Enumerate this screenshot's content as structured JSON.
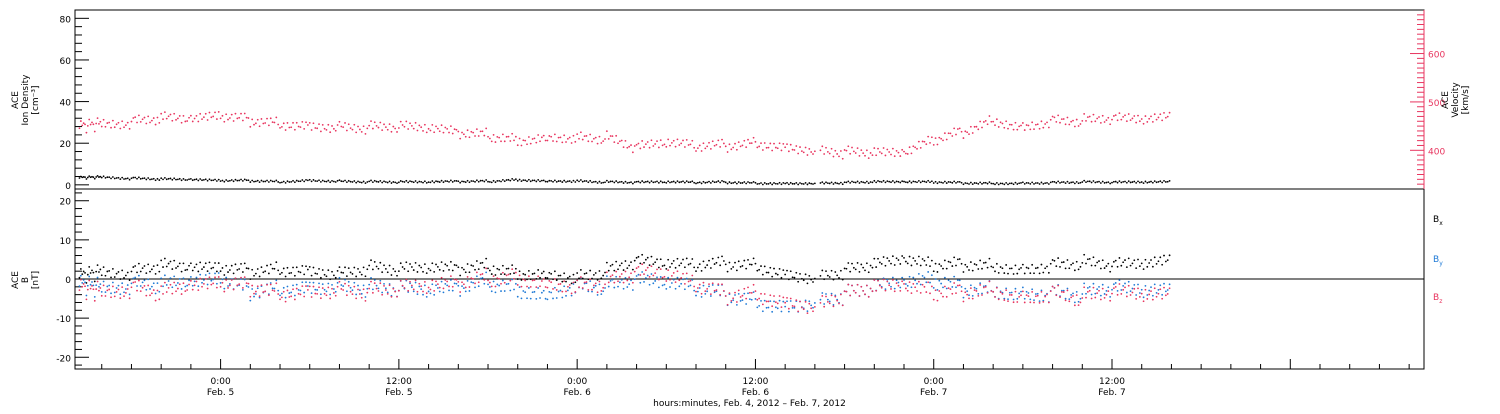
{
  "colors": {
    "black": "#000000",
    "pink": "#e8355f",
    "blue": "#1f7ad6",
    "axis": "#000000"
  },
  "xaxis": {
    "title": "hours:minutes, Feb.  4, 2012 – Feb.  7, 2012",
    "range_hours": [
      -9.8,
      81
    ],
    "major_ticks": [
      {
        "hour": 0,
        "time": "0:00",
        "date": "Feb. 5"
      },
      {
        "hour": 12,
        "time": "12:00",
        "date": "Feb. 5"
      },
      {
        "hour": 24,
        "time": "0:00",
        "date": "Feb. 6"
      },
      {
        "hour": 36,
        "time": "12:00",
        "date": "Feb. 6"
      },
      {
        "hour": 48,
        "time": "0:00",
        "date": "Feb. 7"
      },
      {
        "hour": 60,
        "time": "12:00",
        "date": "Feb. 7"
      }
    ]
  },
  "chart_data": [
    {
      "type": "scatter",
      "panel": "top",
      "ylabel_left": [
        "ACE",
        "Ion Density",
        "[cm⁻³]"
      ],
      "ylabel_right": [
        "ACE",
        "Velocity",
        "[km/s]"
      ],
      "ylim_left": [
        -2,
        84
      ],
      "ylim_right": [
        320,
        690
      ],
      "yticks_left": [
        "0",
        "20",
        "40",
        "60",
        "80"
      ],
      "yticks_right": [
        "400",
        "500",
        "600"
      ],
      "series": [
        {
          "name": "Ion Density",
          "axis": "left",
          "color": "black",
          "points": [
            [
              -9.5,
              3.5
            ],
            [
              -8,
              3.8
            ],
            [
              -6,
              3.2
            ],
            [
              -4,
              2.6
            ],
            [
              -2,
              2.2
            ],
            [
              0,
              1.8
            ],
            [
              2,
              2.0
            ],
            [
              4,
              1.6
            ],
            [
              6,
              2.4
            ],
            [
              8,
              1.9
            ],
            [
              10,
              1.5
            ],
            [
              12,
              1.2
            ],
            [
              14,
              1.1
            ],
            [
              16,
              1.4
            ],
            [
              18,
              1.6
            ],
            [
              20,
              2.6
            ],
            [
              22,
              2.1
            ],
            [
              24,
              2.0
            ],
            [
              26,
              1.3
            ],
            [
              28,
              1.0
            ],
            [
              30,
              1.1
            ],
            [
              32,
              1.0
            ],
            [
              34,
              1.3
            ],
            [
              36,
              1.0
            ],
            [
              38,
              0.9
            ],
            [
              40,
              1.0
            ],
            [
              42,
              1.0
            ],
            [
              44,
              1.2
            ],
            [
              46,
              1.1
            ],
            [
              48,
              1.2
            ],
            [
              50,
              1.0
            ],
            [
              52,
              0.9
            ],
            [
              54,
              1.0
            ],
            [
              56,
              1.2
            ],
            [
              58,
              1.3
            ],
            [
              60,
              1.0
            ],
            [
              62,
              1.0
            ],
            [
              64,
              1.2
            ]
          ]
        },
        {
          "name": "Velocity",
          "axis": "right",
          "color": "pink",
          "points": [
            [
              -9.5,
              450
            ],
            [
              -8,
              456
            ],
            [
              -6,
              460
            ],
            [
              -4,
              464
            ],
            [
              -2,
              458
            ],
            [
              0,
              466
            ],
            [
              2,
              462
            ],
            [
              4,
              458
            ],
            [
              6,
              456
            ],
            [
              8,
              452
            ],
            [
              10,
              448
            ],
            [
              12,
              446
            ],
            [
              14,
              440
            ],
            [
              16,
              432
            ],
            [
              18,
              430
            ],
            [
              20,
              424
            ],
            [
              22,
              432
            ],
            [
              24,
              430
            ],
            [
              26,
              425
            ],
            [
              28,
              402
            ],
            [
              30,
              410
            ],
            [
              32,
              405
            ],
            [
              34,
              410
            ],
            [
              36,
              418
            ],
            [
              38,
              412
            ],
            [
              40,
              404
            ],
            [
              42,
              396
            ],
            [
              44,
              390
            ],
            [
              46,
              388
            ],
            [
              48,
              418
            ],
            [
              50,
              440
            ],
            [
              52,
              466
            ],
            [
              54,
              452
            ],
            [
              56,
              464
            ],
            [
              58,
              460
            ],
            [
              60,
              462
            ],
            [
              62,
              458
            ],
            [
              64,
              464
            ]
          ]
        }
      ]
    },
    {
      "type": "scatter",
      "panel": "bottom",
      "ylabel_left": [
        "ACE",
        "B",
        "[nT]"
      ],
      "ylim": [
        -23,
        23
      ],
      "yticks": [
        "-20",
        "-10",
        "0",
        "10",
        "20"
      ],
      "legend": [
        "Bx",
        "By",
        "Bz"
      ],
      "series": [
        {
          "name": "Bx",
          "color": "black",
          "points": [
            [
              -9.5,
              1
            ],
            [
              -8,
              2
            ],
            [
              -6,
              2
            ],
            [
              -4,
              3
            ],
            [
              -2,
              2
            ],
            [
              0,
              2
            ],
            [
              2,
              2
            ],
            [
              4,
              3
            ],
            [
              6,
              3
            ],
            [
              8,
              2
            ],
            [
              10,
              3
            ],
            [
              12,
              2
            ],
            [
              14,
              2
            ],
            [
              16,
              2
            ],
            [
              18,
              3
            ],
            [
              20,
              2
            ],
            [
              22,
              2
            ],
            [
              24,
              1
            ],
            [
              26,
              2
            ],
            [
              28,
              4
            ],
            [
              30,
              3
            ],
            [
              32,
              3
            ],
            [
              34,
              4
            ],
            [
              36,
              4
            ],
            [
              38,
              2
            ],
            [
              40,
              1
            ],
            [
              42,
              2
            ],
            [
              44,
              3
            ],
            [
              46,
              4
            ],
            [
              48,
              3
            ],
            [
              50,
              4
            ],
            [
              52,
              4
            ],
            [
              54,
              3
            ],
            [
              56,
              4
            ],
            [
              58,
              4
            ],
            [
              60,
              3
            ],
            [
              62,
              3
            ],
            [
              64,
              4
            ]
          ]
        },
        {
          "name": "By",
          "color": "blue",
          "points": [
            [
              -9.5,
              -1
            ],
            [
              -8,
              -2
            ],
            [
              -6,
              -1
            ],
            [
              -4,
              -2
            ],
            [
              -2,
              -2
            ],
            [
              0,
              -1
            ],
            [
              2,
              -3
            ],
            [
              4,
              -2
            ],
            [
              6,
              -1
            ],
            [
              8,
              -1
            ],
            [
              10,
              -2
            ],
            [
              12,
              -3
            ],
            [
              14,
              -4
            ],
            [
              16,
              -3
            ],
            [
              18,
              -1
            ],
            [
              20,
              -2
            ],
            [
              22,
              -3
            ],
            [
              24,
              -1
            ],
            [
              26,
              -2
            ],
            [
              28,
              -1
            ],
            [
              30,
              -2
            ],
            [
              32,
              -3
            ],
            [
              34,
              -4
            ],
            [
              36,
              -5
            ],
            [
              38,
              -6
            ],
            [
              40,
              -5
            ],
            [
              42,
              -4
            ],
            [
              44,
              -3
            ],
            [
              46,
              -2
            ],
            [
              48,
              -1
            ],
            [
              50,
              -2
            ],
            [
              52,
              -2
            ],
            [
              54,
              -3
            ],
            [
              56,
              -3
            ],
            [
              58,
              -4
            ],
            [
              60,
              -3
            ],
            [
              62,
              -4
            ],
            [
              64,
              -4
            ]
          ]
        },
        {
          "name": "Bz",
          "color": "pink",
          "points": [
            [
              -9.5,
              -2
            ],
            [
              -8,
              -3
            ],
            [
              -6,
              -2
            ],
            [
              -4,
              -4
            ],
            [
              -2,
              -3
            ],
            [
              0,
              -2
            ],
            [
              2,
              -2
            ],
            [
              4,
              -3
            ],
            [
              6,
              -2
            ],
            [
              8,
              -2
            ],
            [
              10,
              -3
            ],
            [
              12,
              -3
            ],
            [
              14,
              -3
            ],
            [
              16,
              -2
            ],
            [
              18,
              0
            ],
            [
              20,
              1
            ],
            [
              22,
              0
            ],
            [
              24,
              -1
            ],
            [
              26,
              -1
            ],
            [
              28,
              1
            ],
            [
              30,
              0
            ],
            [
              32,
              -2
            ],
            [
              34,
              -4
            ],
            [
              36,
              -3
            ],
            [
              38,
              -5
            ],
            [
              40,
              -6
            ],
            [
              42,
              -4
            ],
            [
              44,
              -3
            ],
            [
              46,
              -3
            ],
            [
              48,
              -4
            ],
            [
              50,
              -3
            ],
            [
              52,
              -2
            ],
            [
              54,
              -4
            ],
            [
              56,
              -3
            ],
            [
              58,
              -5
            ],
            [
              60,
              -4
            ],
            [
              62,
              -5
            ],
            [
              64,
              -5
            ]
          ]
        }
      ]
    }
  ]
}
